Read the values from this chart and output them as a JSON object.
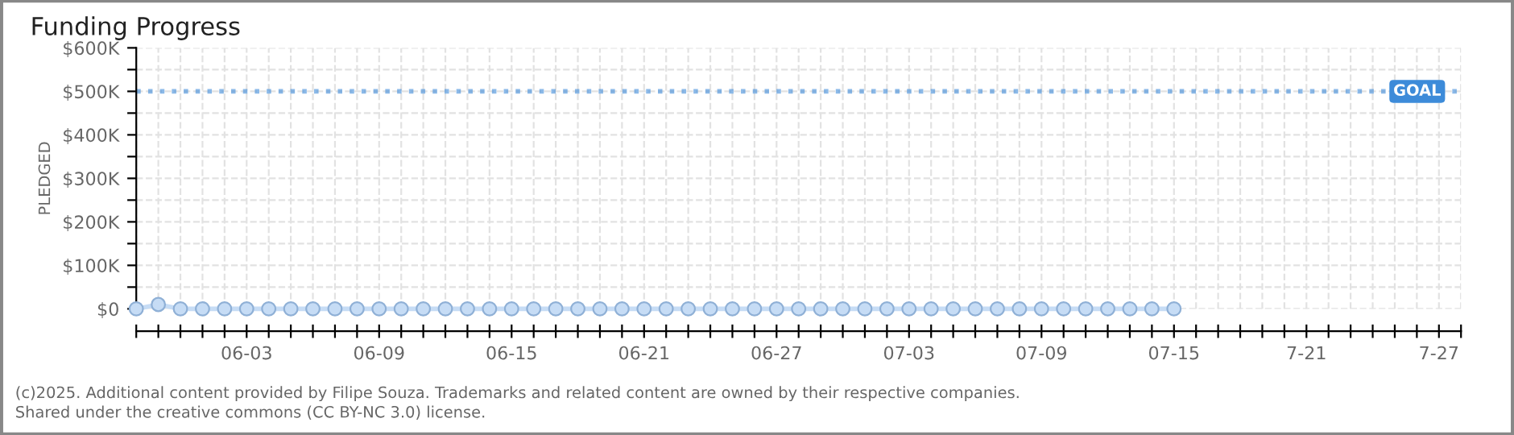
{
  "chart_data": {
    "type": "line",
    "title": "Funding Progress",
    "ylabel": "PLEDGED",
    "x": [
      "2025-05-29",
      "2025-05-30",
      "2025-05-31",
      "2025-06-01",
      "2025-06-02",
      "2025-06-03",
      "2025-06-04",
      "2025-06-05",
      "2025-06-06",
      "2025-06-07",
      "2025-06-08",
      "2025-06-09",
      "2025-06-10",
      "2025-06-11",
      "2025-06-12",
      "2025-06-13",
      "2025-06-14",
      "2025-06-15",
      "2025-06-16",
      "2025-06-17",
      "2025-06-18",
      "2025-06-19",
      "2025-06-20",
      "2025-06-21",
      "2025-06-22",
      "2025-06-23",
      "2025-06-24",
      "2025-06-25",
      "2025-06-26",
      "2025-06-27",
      "2025-06-28",
      "2025-06-29",
      "2025-06-30",
      "2025-07-01",
      "2025-07-02",
      "2025-07-03",
      "2025-07-04",
      "2025-07-05",
      "2025-07-06",
      "2025-07-07",
      "2025-07-08",
      "2025-07-09",
      "2025-07-10",
      "2025-07-11",
      "2025-07-12",
      "2025-07-13",
      "2025-07-14",
      "2025-07-15"
    ],
    "series": [
      {
        "color": "#c6dcf5",
        "values": [
          0,
          10000,
          0,
          0,
          0,
          0,
          0,
          0,
          0,
          0,
          0,
          0,
          0,
          0,
          0,
          0,
          0,
          0,
          0,
          0,
          0,
          0,
          0,
          0,
          0,
          0,
          0,
          0,
          0,
          0,
          0,
          0,
          0,
          0,
          0,
          0,
          0,
          0,
          0,
          0,
          0,
          0,
          0,
          0,
          0,
          0,
          0,
          0
        ]
      }
    ],
    "marker": "circle",
    "grid": true,
    "legend": false,
    "xlim": [
      "2025-05-29",
      "2025-07-28"
    ],
    "xticks": [
      {
        "value": "2025-05-29",
        "label": null
      },
      {
        "value": "2025-05-30",
        "label": null
      },
      {
        "value": "2025-05-31",
        "label": null
      },
      {
        "value": "2025-06-01",
        "label": null
      },
      {
        "value": "2025-06-02",
        "label": null
      },
      {
        "value": "2025-06-03",
        "label": "06-03"
      },
      {
        "value": "2025-06-04",
        "label": null
      },
      {
        "value": "2025-06-05",
        "label": null
      },
      {
        "value": "2025-06-06",
        "label": null
      },
      {
        "value": "2025-06-07",
        "label": null
      },
      {
        "value": "2025-06-08",
        "label": null
      },
      {
        "value": "2025-06-09",
        "label": "06-09"
      },
      {
        "value": "2025-06-10",
        "label": null
      },
      {
        "value": "2025-06-11",
        "label": null
      },
      {
        "value": "2025-06-12",
        "label": null
      },
      {
        "value": "2025-06-13",
        "label": null
      },
      {
        "value": "2025-06-14",
        "label": null
      },
      {
        "value": "2025-06-15",
        "label": "06-15"
      },
      {
        "value": "2025-06-16",
        "label": null
      },
      {
        "value": "2025-06-17",
        "label": null
      },
      {
        "value": "2025-06-18",
        "label": null
      },
      {
        "value": "2025-06-19",
        "label": null
      },
      {
        "value": "2025-06-20",
        "label": null
      },
      {
        "value": "2025-06-21",
        "label": "06-21"
      },
      {
        "value": "2025-06-22",
        "label": null
      },
      {
        "value": "2025-06-23",
        "label": null
      },
      {
        "value": "2025-06-24",
        "label": null
      },
      {
        "value": "2025-06-25",
        "label": null
      },
      {
        "value": "2025-06-26",
        "label": null
      },
      {
        "value": "2025-06-27",
        "label": "06-27"
      },
      {
        "value": "2025-06-28",
        "label": null
      },
      {
        "value": "2025-06-29",
        "label": null
      },
      {
        "value": "2025-06-30",
        "label": null
      },
      {
        "value": "2025-07-01",
        "label": null
      },
      {
        "value": "2025-07-02",
        "label": null
      },
      {
        "value": "2025-07-03",
        "label": "07-03"
      },
      {
        "value": "2025-07-04",
        "label": null
      },
      {
        "value": "2025-07-05",
        "label": null
      },
      {
        "value": "2025-07-06",
        "label": null
      },
      {
        "value": "2025-07-07",
        "label": null
      },
      {
        "value": "2025-07-08",
        "label": null
      },
      {
        "value": "2025-07-09",
        "label": "07-09"
      },
      {
        "value": "2025-07-10",
        "label": null
      },
      {
        "value": "2025-07-11",
        "label": null
      },
      {
        "value": "2025-07-12",
        "label": null
      },
      {
        "value": "2025-07-13",
        "label": null
      },
      {
        "value": "2025-07-14",
        "label": null
      },
      {
        "value": "2025-07-15",
        "label": "07-15"
      },
      {
        "value": "2025-07-16",
        "label": null
      },
      {
        "value": "2025-07-17",
        "label": null
      },
      {
        "value": "2025-07-18",
        "label": null
      },
      {
        "value": "2025-07-19",
        "label": null
      },
      {
        "value": "2025-07-20",
        "label": null
      },
      {
        "value": "2025-07-21",
        "label": "7-21"
      },
      {
        "value": "2025-07-22",
        "label": null
      },
      {
        "value": "2025-07-23",
        "label": null
      },
      {
        "value": "2025-07-24",
        "label": null
      },
      {
        "value": "2025-07-25",
        "label": null
      },
      {
        "value": "2025-07-26",
        "label": null
      },
      {
        "value": "2025-07-27",
        "label": "7-27"
      },
      {
        "value": "2025-07-28",
        "label": null
      }
    ],
    "ylim": [
      0,
      600000
    ],
    "yticks": [
      {
        "value": 0,
        "label": "$0"
      },
      {
        "value": 50000,
        "label": null
      },
      {
        "value": 100000,
        "label": "$100K"
      },
      {
        "value": 150000,
        "label": null
      },
      {
        "value": 200000,
        "label": "$200K"
      },
      {
        "value": 250000,
        "label": null
      },
      {
        "value": 300000,
        "label": "$300K"
      },
      {
        "value": 350000,
        "label": null
      },
      {
        "value": 400000,
        "label": "$400K"
      },
      {
        "value": 450000,
        "label": null
      },
      {
        "value": 500000,
        "label": "$500K"
      },
      {
        "value": 550000,
        "label": null
      },
      {
        "value": 600000,
        "label": "$600K"
      }
    ],
    "ref_lines": [
      {
        "axis": "y",
        "value": 500000,
        "label": "GOAL",
        "color": "#3d8bd9",
        "line_style": "dotted"
      }
    ],
    "annotations": [
      "(c)2025. Additional content provided by Filipe Souza. Trademarks and related content are owned by their respective companies.",
      "Shared under the creative commons (CC BY-NC 3.0) license."
    ]
  }
}
